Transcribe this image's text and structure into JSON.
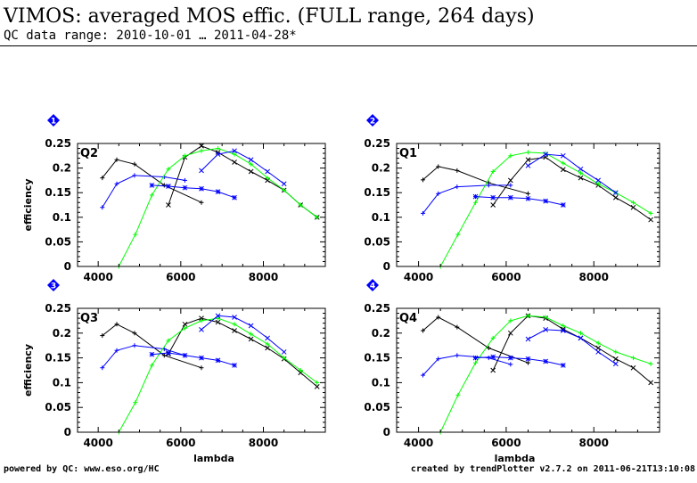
{
  "header": {
    "title": "VIMOS: averaged MOS effic. (FULL range, 264 days)",
    "subtitle": "QC data range: 2010-10-01 … 2011-04-28*"
  },
  "footer": {
    "left": "powered by QC: www.eso.org/HC",
    "right": "created by trendPlotter v2.7.2 on 2011-06-21T13:10:08"
  },
  "colors": {
    "black": "#000000",
    "blue": "#0000ff",
    "green": "#00ff00",
    "badge": "#0000ff",
    "badge_text": "#ffffff"
  },
  "chart_data": [
    {
      "type": "line",
      "badge": "1",
      "label": "Q2",
      "xlabel": "",
      "ylabel": "efficiency",
      "xlim": [
        3500,
        9500
      ],
      "ylim": [
        0,
        0.25
      ],
      "xticks": [
        4000,
        6000,
        8000
      ],
      "yticks": [
        0,
        0.05,
        0.1,
        0.15,
        0.2,
        0.25
      ],
      "ytick_labels": [
        "0",
        "0.05",
        "0.1",
        "0.15",
        "0.2",
        "0.25"
      ],
      "series": [
        {
          "color": "black",
          "marker": "+",
          "x": [
            4100,
            4450,
            4880,
            5600,
            6500
          ],
          "y": [
            0.18,
            0.217,
            0.208,
            0.165,
            0.13
          ]
        },
        {
          "color": "blue",
          "marker": "+",
          "x": [
            4100,
            4450,
            4880,
            5600,
            6100
          ],
          "y": [
            0.12,
            0.168,
            0.185,
            0.182,
            0.175
          ]
        },
        {
          "color": "black",
          "marker": "x",
          "x": [
            5700,
            6100,
            6500,
            6900,
            7300,
            7700,
            8100,
            8500,
            8900,
            9300
          ],
          "y": [
            0.125,
            0.222,
            0.245,
            0.232,
            0.212,
            0.193,
            0.175,
            0.155,
            0.125,
            0.1
          ]
        },
        {
          "color": "green",
          "marker": "+",
          "x": [
            4500,
            4900,
            5300,
            5700,
            6100,
            6500,
            6900,
            7300,
            7700,
            8100,
            8500,
            8900,
            9300
          ],
          "y": [
            0,
            0.065,
            0.145,
            0.198,
            0.225,
            0.235,
            0.24,
            0.228,
            0.208,
            0.18,
            0.155,
            0.125,
            0.1
          ]
        },
        {
          "color": "blue",
          "marker": "x",
          "x": [
            6500,
            6900,
            7300,
            7700,
            8100,
            8500
          ],
          "y": [
            0.195,
            0.228,
            0.235,
            0.217,
            0.193,
            0.168
          ]
        },
        {
          "color": "blue",
          "marker": "*",
          "x": [
            5300,
            5700,
            6100,
            6500,
            6900,
            7300
          ],
          "y": [
            0.165,
            0.163,
            0.16,
            0.158,
            0.152,
            0.14
          ]
        }
      ]
    },
    {
      "type": "line",
      "badge": "2",
      "label": "Q1",
      "xlabel": "",
      "ylabel": "",
      "xlim": [
        3500,
        9500
      ],
      "ylim": [
        0,
        0.25
      ],
      "xticks": [
        4000,
        6000,
        8000
      ],
      "yticks": [
        0,
        0.05,
        0.1,
        0.15,
        0.2,
        0.25
      ],
      "ytick_labels": [
        "0",
        "0.05",
        "0.1",
        "0.15",
        "0.2",
        "0.25"
      ],
      "series": [
        {
          "color": "black",
          "marker": "+",
          "x": [
            4100,
            4450,
            4880,
            5600,
            6500
          ],
          "y": [
            0.176,
            0.203,
            0.195,
            0.17,
            0.148
          ]
        },
        {
          "color": "blue",
          "marker": "+",
          "x": [
            4100,
            4450,
            4880,
            5600,
            6100
          ],
          "y": [
            0.108,
            0.148,
            0.162,
            0.165,
            0.165
          ]
        },
        {
          "color": "black",
          "marker": "x",
          "x": [
            5700,
            6100,
            6500,
            6900,
            7300,
            7700,
            8100,
            8500,
            8900,
            9300
          ],
          "y": [
            0.125,
            0.175,
            0.217,
            0.222,
            0.197,
            0.18,
            0.165,
            0.14,
            0.12,
            0.095
          ]
        },
        {
          "color": "green",
          "marker": "+",
          "x": [
            4500,
            4900,
            5300,
            5700,
            6100,
            6500,
            6900,
            7300,
            7700,
            8100,
            8500,
            8900,
            9300
          ],
          "y": [
            0,
            0.065,
            0.13,
            0.193,
            0.225,
            0.232,
            0.23,
            0.21,
            0.19,
            0.168,
            0.15,
            0.13,
            0.108
          ]
        },
        {
          "color": "blue",
          "marker": "x",
          "x": [
            6500,
            6900,
            7300,
            7700,
            8100,
            8500
          ],
          "y": [
            0.205,
            0.228,
            0.225,
            0.198,
            0.175,
            0.15
          ]
        },
        {
          "color": "blue",
          "marker": "*",
          "x": [
            5300,
            5700,
            6100,
            6500,
            6900,
            7300
          ],
          "y": [
            0.142,
            0.14,
            0.14,
            0.138,
            0.133,
            0.125
          ]
        }
      ]
    },
    {
      "type": "line",
      "badge": "3",
      "label": "Q3",
      "xlabel": "lambda",
      "ylabel": "efficiency",
      "xlim": [
        3500,
        9500
      ],
      "ylim": [
        0,
        0.25
      ],
      "xticks": [
        4000,
        6000,
        8000
      ],
      "yticks": [
        0,
        0.05,
        0.1,
        0.15,
        0.2,
        0.25
      ],
      "ytick_labels": [
        "0",
        "0.05",
        "0.1",
        "0.15",
        "0.2",
        "0.25"
      ],
      "series": [
        {
          "color": "black",
          "marker": "+",
          "x": [
            4100,
            4450,
            4880,
            5600,
            6500
          ],
          "y": [
            0.195,
            0.218,
            0.2,
            0.155,
            0.13
          ]
        },
        {
          "color": "blue",
          "marker": "+",
          "x": [
            4100,
            4450,
            4880,
            5600,
            6100
          ],
          "y": [
            0.13,
            0.165,
            0.175,
            0.168,
            0.155
          ]
        },
        {
          "color": "black",
          "marker": "x",
          "x": [
            5700,
            6100,
            6500,
            6900,
            7300,
            7700,
            8100,
            8500,
            8900,
            9300
          ],
          "y": [
            0.158,
            0.218,
            0.23,
            0.222,
            0.205,
            0.188,
            0.17,
            0.148,
            0.12,
            0.092
          ]
        },
        {
          "color": "green",
          "marker": "+",
          "x": [
            4500,
            4900,
            5300,
            5700,
            6100,
            6500,
            6900,
            7300,
            7700,
            8100,
            8500,
            8900,
            9300
          ],
          "y": [
            0,
            0.06,
            0.135,
            0.185,
            0.21,
            0.225,
            0.23,
            0.218,
            0.198,
            0.178,
            0.15,
            0.125,
            0.1
          ]
        },
        {
          "color": "blue",
          "marker": "x",
          "x": [
            6500,
            6900,
            7300,
            7700,
            8100,
            8500
          ],
          "y": [
            0.207,
            0.235,
            0.232,
            0.215,
            0.19,
            0.162
          ]
        },
        {
          "color": "blue",
          "marker": "*",
          "x": [
            5300,
            5700,
            6100,
            6500,
            6900,
            7300
          ],
          "y": [
            0.157,
            0.16,
            0.155,
            0.15,
            0.145,
            0.135
          ]
        }
      ]
    },
    {
      "type": "line",
      "badge": "4",
      "label": "Q4",
      "xlabel": "lambda",
      "ylabel": "",
      "xlim": [
        3500,
        9500
      ],
      "ylim": [
        0,
        0.25
      ],
      "xticks": [
        4000,
        6000,
        8000
      ],
      "yticks": [
        0,
        0.05,
        0.1,
        0.15,
        0.2,
        0.25
      ],
      "ytick_labels": [
        "0",
        "0.05",
        "0.1",
        "0.15",
        "0.2",
        "0.25"
      ],
      "series": [
        {
          "color": "black",
          "marker": "+",
          "x": [
            4100,
            4450,
            4880,
            5600,
            6500
          ],
          "y": [
            0.205,
            0.232,
            0.212,
            0.17,
            0.14
          ]
        },
        {
          "color": "blue",
          "marker": "+",
          "x": [
            4100,
            4450,
            4880,
            5600,
            6100
          ],
          "y": [
            0.115,
            0.148,
            0.155,
            0.15,
            0.137
          ]
        },
        {
          "color": "black",
          "marker": "x",
          "x": [
            5700,
            6100,
            6500,
            6900,
            7300,
            7700,
            8100,
            8500,
            8900,
            9300
          ],
          "y": [
            0.125,
            0.2,
            0.235,
            0.23,
            0.208,
            0.19,
            0.17,
            0.148,
            0.13,
            0.1
          ]
        },
        {
          "color": "green",
          "marker": "+",
          "x": [
            4500,
            4900,
            5300,
            5700,
            6100,
            6500,
            6900,
            7300,
            7700,
            8100,
            8500,
            8900,
            9300
          ],
          "y": [
            0,
            0.075,
            0.14,
            0.19,
            0.225,
            0.235,
            0.232,
            0.215,
            0.2,
            0.18,
            0.162,
            0.15,
            0.138
          ]
        },
        {
          "color": "blue",
          "marker": "x",
          "x": [
            6500,
            6900,
            7300,
            7700,
            8100,
            8500
          ],
          "y": [
            0.188,
            0.207,
            0.205,
            0.19,
            0.162,
            0.138
          ]
        },
        {
          "color": "blue",
          "marker": "*",
          "x": [
            5300,
            5700,
            6100,
            6500,
            6900,
            7300
          ],
          "y": [
            0.15,
            0.152,
            0.15,
            0.148,
            0.143,
            0.135
          ]
        }
      ]
    }
  ]
}
